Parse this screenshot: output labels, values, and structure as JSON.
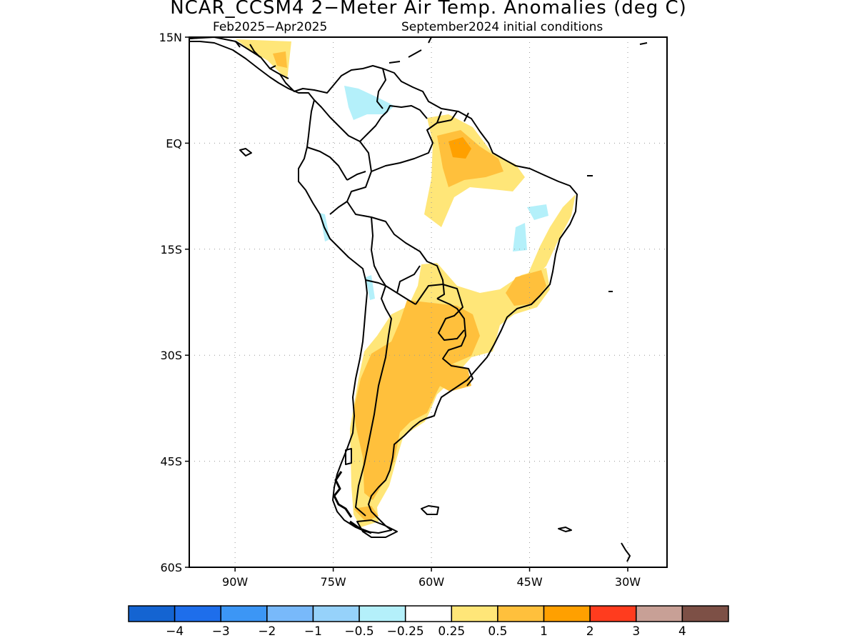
{
  "title": "NCAR_CCSM4 2−Meter Air Temp. Anomalies (deg C)",
  "subtitle_left": "Feb2025−Apr2025",
  "subtitle_right": "September2024 initial conditions",
  "map": {
    "lon_range": [
      -97,
      -24
    ],
    "lat_range": [
      -60,
      15
    ],
    "lat_ticks": [
      "15N",
      "EQ",
      "15S",
      "30S",
      "45S",
      "60S"
    ],
    "lon_ticks": [
      "90W",
      "75W",
      "60W",
      "45W",
      "30W"
    ],
    "grid": true
  },
  "colorbar": {
    "colors": [
      "#1464d2",
      "#1e6eeb",
      "#3c96f5",
      "#78b9fa",
      "#96d2fa",
      "#b4f0fa",
      "#ffffff",
      "#ffe678",
      "#ffc03c",
      "#ffa000",
      "#ff3c1e",
      "#c8a096",
      "#7d5046"
    ],
    "labels": [
      "−4",
      "−3",
      "−2",
      "−1",
      "−0.5",
      "−0.25",
      "0.25",
      "0.5",
      "1",
      "2",
      "3",
      "4"
    ]
  }
}
